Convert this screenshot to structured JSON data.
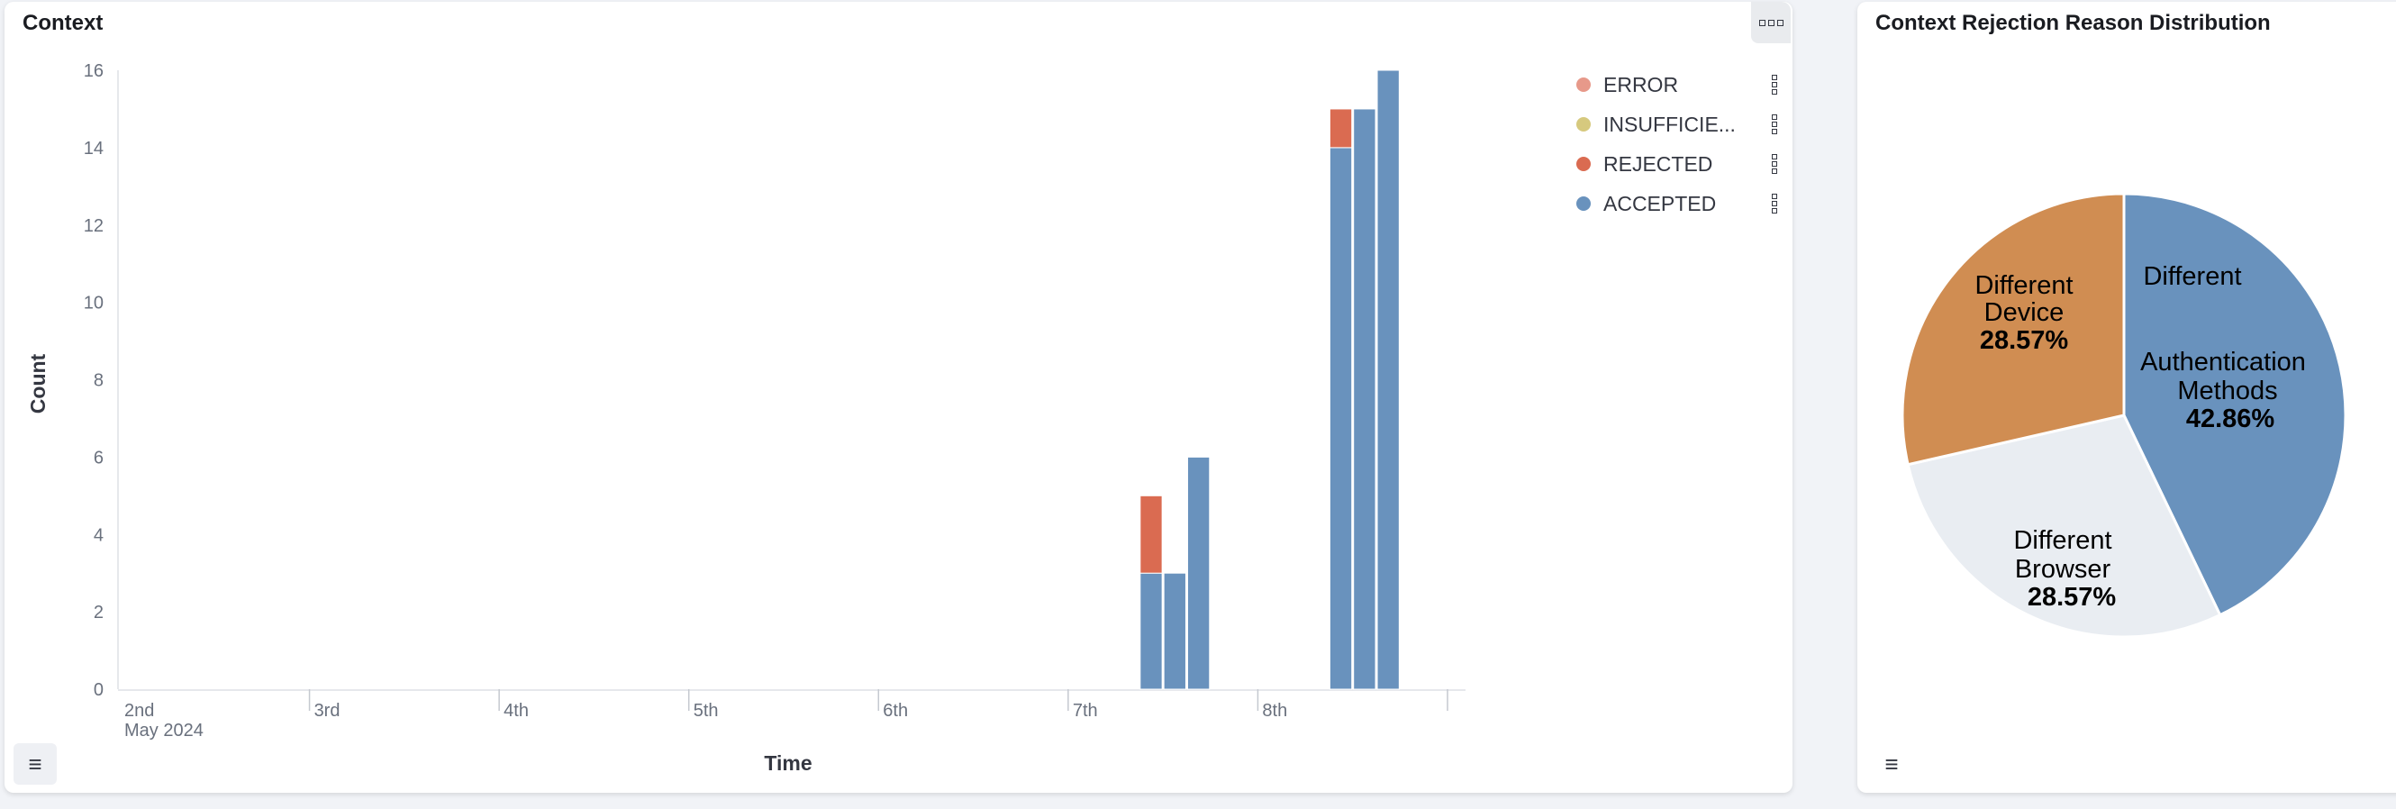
{
  "left_panel": {
    "title": "Context",
    "menu_icon": "options-dots-icon",
    "legend_toggle_icon": "list-icon"
  },
  "right_panel": {
    "title": "Context Rejection Reason Distribution",
    "legend_toggle_icon": "list-icon"
  },
  "chart_data": [
    {
      "type": "bar",
      "stacked": true,
      "title": "",
      "xlabel": "Time",
      "ylabel": "Count",
      "ylim": [
        0,
        16
      ],
      "yticks": [
        "0",
        "2",
        "4",
        "6",
        "8",
        "10",
        "12",
        "14",
        "16"
      ],
      "xticks": [
        "2nd",
        "3rd",
        "4th",
        "5th",
        "6th",
        "7th",
        "8th"
      ],
      "xtick_sublabel": "May 2024",
      "xlim": [
        "2024-05-02 00:00",
        "2024-05-09 00:00"
      ],
      "x": [
        "2024-05-07 09:00",
        "2024-05-07 12:00",
        "2024-05-07 15:00",
        "2024-05-08 09:00",
        "2024-05-08 12:00",
        "2024-05-08 15:00"
      ],
      "series": [
        {
          "name": "ACCEPTED",
          "color": "#6992bd",
          "values": [
            3,
            3,
            6,
            14,
            15,
            16
          ]
        },
        {
          "name": "REJECTED",
          "color": "#da6b51",
          "values": [
            2,
            0,
            0,
            1,
            0,
            0
          ]
        },
        {
          "name": "INSUFFICIE...",
          "color": "#d6c97e",
          "values": [
            0,
            0,
            0,
            0,
            0,
            0
          ]
        },
        {
          "name": "ERROR",
          "color": "#e7998a",
          "values": [
            0,
            0,
            0,
            0,
            0,
            0
          ]
        }
      ],
      "legend": {
        "placement": "top-right",
        "order": [
          "ERROR",
          "INSUFFICIE...",
          "REJECTED",
          "ACCEPTED"
        ]
      },
      "grid": false
    },
    {
      "type": "pie",
      "title": "Context Rejection Reason Distribution",
      "slices": [
        {
          "label": "Different Authentication Methods",
          "label_lines": [
            "Different",
            "Authentication",
            "Methods"
          ],
          "percent_label": "42.86%",
          "value": 42.86,
          "color": "#6992bd"
        },
        {
          "label": "Different Browser",
          "label_lines": [
            "Different",
            "Browser"
          ],
          "percent_label": "28.57%",
          "value": 28.57,
          "color": "#e9edf2"
        },
        {
          "label": "Different Device",
          "label_lines": [
            "Different",
            "Device"
          ],
          "percent_label": "28.57%",
          "value": 28.57,
          "color": "#d08d52"
        }
      ]
    }
  ]
}
